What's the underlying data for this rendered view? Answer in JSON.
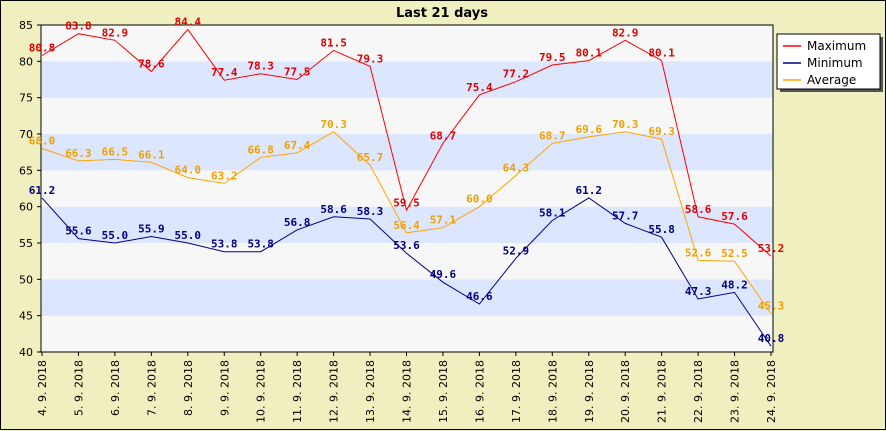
{
  "chart_data": {
    "type": "line",
    "title": "Last 21 days",
    "xlabel": "",
    "ylabel": "",
    "ylim": [
      40,
      85
    ],
    "yticks": [
      40,
      45,
      50,
      55,
      60,
      65,
      70,
      75,
      80,
      85
    ],
    "legend_position": "top-right",
    "grid": true,
    "categories": [
      "4. 9. 2018",
      "5. 9. 2018",
      "6. 9. 2018",
      "7. 9. 2018",
      "8. 9. 2018",
      "9. 9. 2018",
      "10. 9. 2018",
      "11. 9. 2018",
      "12. 9. 2018",
      "13. 9. 2018",
      "14. 9. 2018",
      "15. 9. 2018",
      "16. 9. 2018",
      "17. 9. 2018",
      "18. 9. 2018",
      "19. 9. 2018",
      "20. 9. 2018",
      "21. 9. 2018",
      "22. 9. 2018",
      "23. 9. 2018",
      "24. 9. 2018"
    ],
    "series": [
      {
        "name": "Maximum",
        "color": "#ff0000",
        "label_color": "#e00000",
        "values": [
          80.8,
          83.8,
          82.9,
          78.6,
          84.4,
          77.4,
          78.3,
          77.5,
          81.5,
          79.3,
          59.5,
          68.7,
          75.4,
          77.2,
          79.5,
          80.1,
          82.9,
          80.1,
          58.6,
          57.6,
          53.2
        ]
      },
      {
        "name": "Minimum",
        "color": "#000080",
        "label_color": "#000080",
        "values": [
          61.2,
          55.6,
          55.0,
          55.9,
          55.0,
          53.8,
          53.8,
          56.8,
          58.6,
          58.3,
          53.6,
          49.6,
          46.6,
          52.9,
          58.1,
          61.2,
          57.7,
          55.8,
          47.3,
          48.2,
          40.8
        ]
      },
      {
        "name": "Average",
        "color": "#ffa500",
        "label_color": "#f0a000",
        "values": [
          68.0,
          66.3,
          66.5,
          66.1,
          64.0,
          63.2,
          66.8,
          67.4,
          70.3,
          65.7,
          56.4,
          57.1,
          60.0,
          64.3,
          68.7,
          69.6,
          70.3,
          69.3,
          52.6,
          52.5,
          45.3
        ]
      }
    ],
    "colors": {
      "background": "#efefbf",
      "plot_light": "#f7f7f7",
      "plot_band": "#dde6ff"
    }
  }
}
